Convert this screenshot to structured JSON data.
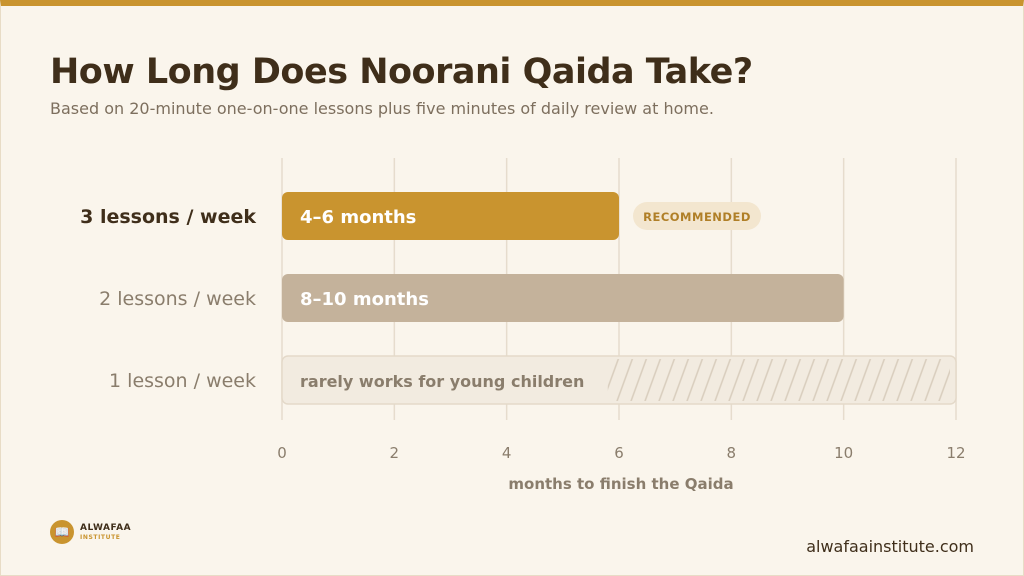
{
  "title": "How Long Does Noorani Qaida Take?",
  "subtitle": "Based on 20-minute one-on-one lessons plus five minutes of daily review at home.",
  "branding": {
    "logo_name": "ALWAFAA",
    "logo_sub": "INSTITUTE",
    "website": "alwafaainstitute.com"
  },
  "chart_data": {
    "type": "bar",
    "orientation": "horizontal",
    "categories": [
      "3 lessons / week",
      "2 lessons / week",
      "1 lesson / week"
    ],
    "values": [
      6,
      10,
      12
    ],
    "range_labels": [
      "4–6 months",
      "8–10 months",
      "rarely works for young children"
    ],
    "badges": [
      "RECOMMENDED",
      "",
      ""
    ],
    "bar_colors": [
      "#c9942f",
      "#c4b29b",
      "#f2ebe0"
    ],
    "xlabel": "months to finish the Qaida",
    "xticks": [
      0,
      2,
      4,
      6,
      8,
      10,
      12
    ],
    "xlim": [
      0,
      12
    ],
    "grid": true
  }
}
